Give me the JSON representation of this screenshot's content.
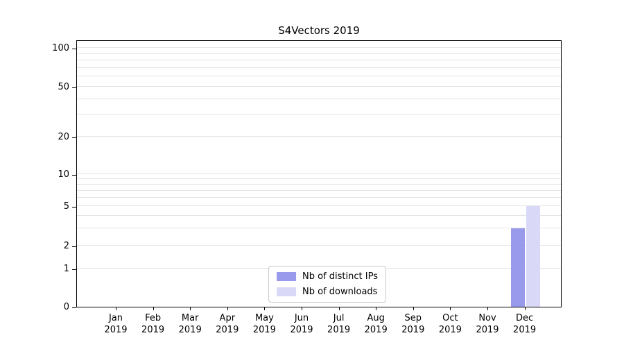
{
  "chart_data": {
    "type": "bar",
    "title": "S4Vectors 2019",
    "categories": [
      "Jan",
      "Feb",
      "Mar",
      "Apr",
      "May",
      "Jun",
      "Jul",
      "Aug",
      "Sep",
      "Oct",
      "Nov",
      "Dec"
    ],
    "x_year": "2019",
    "series": [
      {
        "name": "Nb of distinct IPs",
        "color": "#9a9aec",
        "values": [
          0,
          0,
          0,
          0,
          0,
          0,
          0,
          0,
          0,
          0,
          0,
          3
        ]
      },
      {
        "name": "Nb of downloads",
        "color": "#d9d9f7",
        "values": [
          0,
          0,
          0,
          0,
          0,
          0,
          0,
          0,
          0,
          0,
          0,
          5
        ]
      }
    ],
    "y_ticks": [
      0,
      1,
      2,
      5,
      10,
      20,
      50,
      100
    ],
    "gridline_values": [
      1,
      2,
      3,
      4,
      5,
      6,
      7,
      8,
      9,
      10,
      20,
      30,
      40,
      50,
      60,
      70,
      80,
      90,
      100
    ],
    "y_scale_anchors": [
      [
        0,
        0
      ],
      [
        1,
        0.143
      ],
      [
        2,
        0.229
      ],
      [
        5,
        0.377
      ],
      [
        10,
        0.496
      ],
      [
        20,
        0.636
      ],
      [
        50,
        0.823
      ],
      [
        100,
        0.969
      ]
    ],
    "ylabel": "",
    "xlabel": "",
    "scale": "symlog",
    "grid": "on",
    "legend_position": "bottom-center"
  }
}
